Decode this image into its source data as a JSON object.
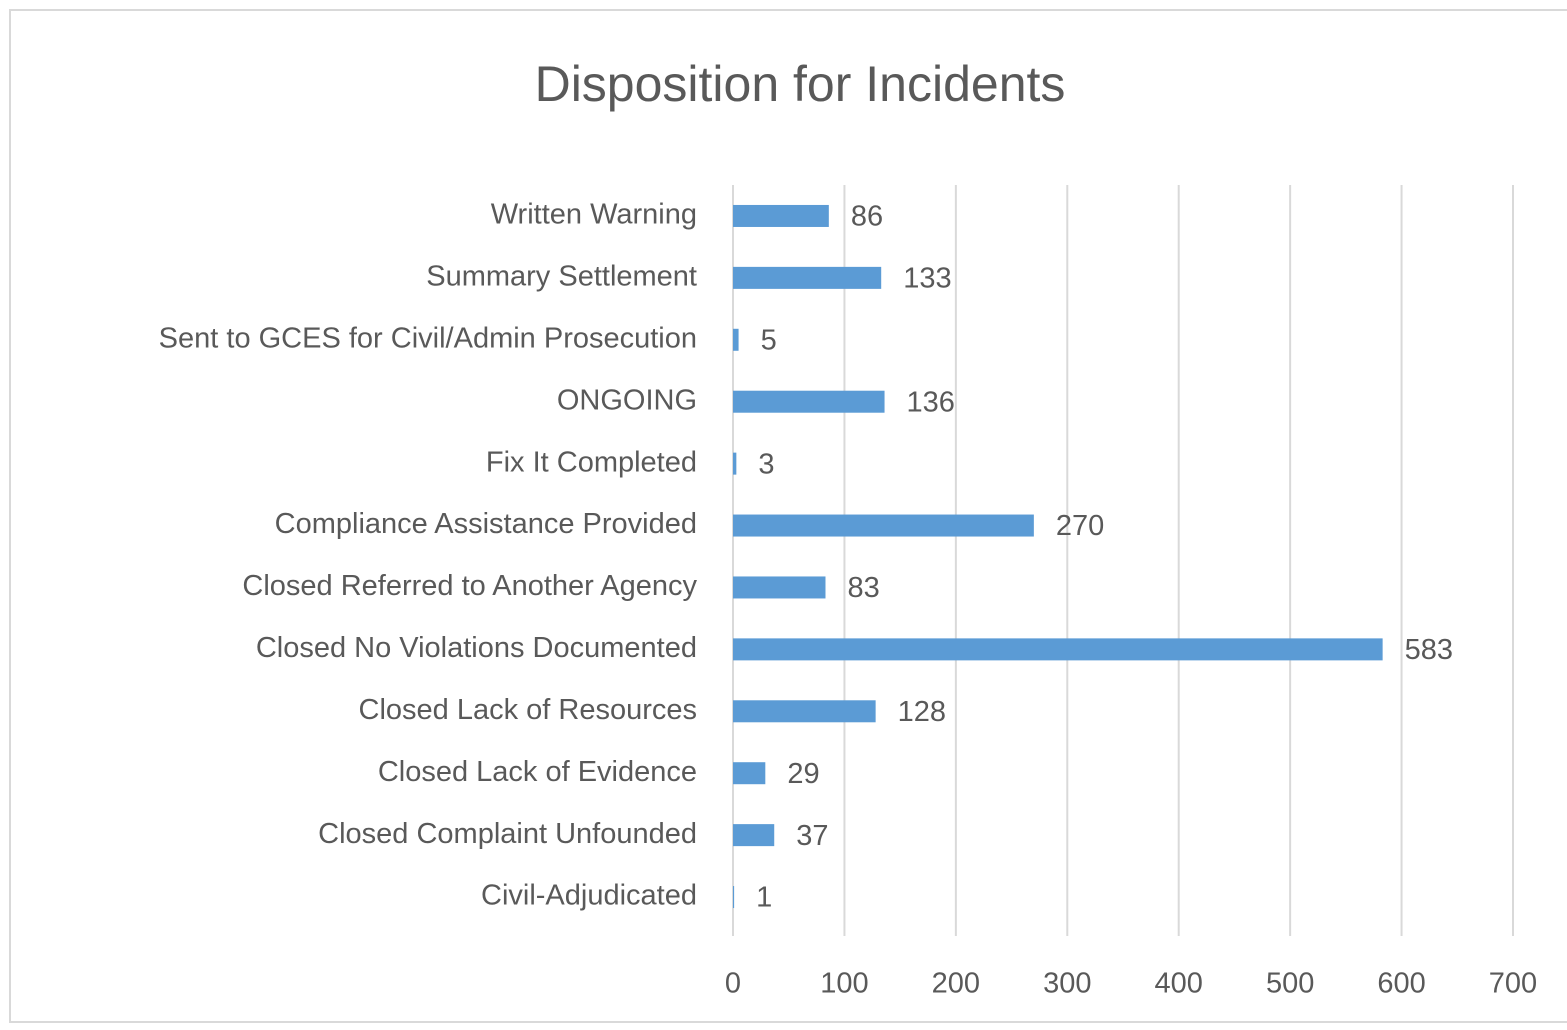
{
  "chart_data": {
    "type": "barh",
    "title": "Disposition for Incidents",
    "categories": [
      "Written Warning",
      "Summary Settlement",
      "Sent to GCES for Civil/Admin Prosecution",
      "ONGOING",
      "Fix It Completed",
      "Compliance Assistance Provided",
      "Closed Referred to Another Agency",
      "Closed No Violations Documented",
      "Closed Lack of Resources",
      "Closed Lack of Evidence",
      "Closed Complaint Unfounded",
      "Civil-Adjudicated"
    ],
    "values": [
      86,
      133,
      5,
      136,
      3,
      270,
      83,
      583,
      128,
      29,
      37,
      1
    ],
    "color": "#5b9bd5",
    "xlim": [
      0,
      700
    ],
    "xticks": [
      0,
      100,
      200,
      300,
      400,
      500,
      600,
      700
    ],
    "grid": true
  }
}
